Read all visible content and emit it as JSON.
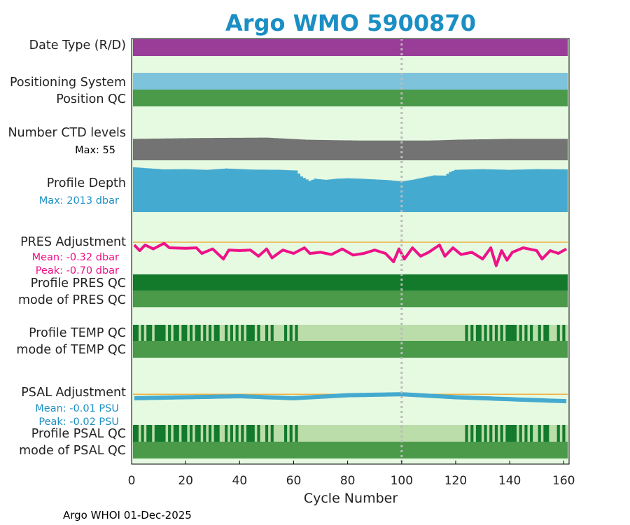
{
  "title": "Argo WMO 5900870",
  "footer": "Argo WHOI 01-Dec-2025",
  "colors": {
    "title": "#1B8FC4",
    "panel_bg": "#E6F9E1",
    "date_type": "#993D99",
    "positioning": "#7EC3DC",
    "qc_good": "#4A9A4A",
    "qc_dark": "#137A2C",
    "qc_light": "#BBDDAA",
    "ctd": "#737373",
    "depth": "#45AACF",
    "pres_line": "#EE1188",
    "psal_line": "#45AACF",
    "ref_line": "#F0B040",
    "marker": "#BBBBBB",
    "pres_stats": "#EE1188",
    "psal_stats": "#1B8FC4",
    "depth_stats": "#1B8FC4"
  },
  "rows": {
    "date_type": "Date Type (R/D)",
    "positioning_system": "Positioning System",
    "position_qc": "Position QC",
    "ctd_levels": "Number CTD levels",
    "ctd_max": "Max: 55",
    "profile_depth": "Profile Depth",
    "depth_max": "Max: 2013 dbar",
    "pres_adjustment": "PRES Adjustment",
    "pres_mean": "Mean: -0.32 dbar",
    "pres_peak": "Peak: -0.70 dbar",
    "profile_pres_qc": "Profile PRES QC",
    "mode_pres_qc": "mode of PRES QC",
    "profile_temp_qc": "Profile TEMP QC",
    "mode_temp_qc": "mode of TEMP QC",
    "psal_adjustment": "PSAL Adjustment",
    "psal_mean": "Mean: -0.01 PSU",
    "psal_peak": "Peak: -0.02 PSU",
    "profile_psal_qc": "Profile PSAL QC",
    "mode_psal_qc": "mode of PSAL QC"
  },
  "chart_data": {
    "type": "timeline",
    "title": "Argo WMO 5900870",
    "xlabel": "Cycle Number",
    "xlim": [
      0,
      162
    ],
    "xticks": [
      0,
      20,
      40,
      60,
      80,
      100,
      120,
      140,
      160
    ],
    "marker_cycle": 100,
    "cycles_start": 1,
    "cycles_end": 161,
    "ctd_levels": {
      "max": 55,
      "ylim": [
        0,
        55
      ],
      "breakpoints": [
        [
          1,
          51
        ],
        [
          25,
          53
        ],
        [
          50,
          54
        ],
        [
          62,
          50
        ],
        [
          65,
          49
        ],
        [
          75,
          48
        ],
        [
          85,
          47
        ],
        [
          110,
          47
        ],
        [
          120,
          49
        ],
        [
          140,
          51
        ],
        [
          161,
          51
        ]
      ]
    },
    "profile_depth": {
      "max": 2013,
      "ylim": [
        0,
        2013
      ],
      "breakpoints": [
        [
          1,
          2013
        ],
        [
          12,
          1920
        ],
        [
          20,
          1930
        ],
        [
          28,
          1900
        ],
        [
          35,
          1960
        ],
        [
          45,
          1910
        ],
        [
          55,
          1900
        ],
        [
          61,
          1870
        ],
        [
          63,
          1600
        ],
        [
          66,
          1400
        ],
        [
          68,
          1500
        ],
        [
          72,
          1450
        ],
        [
          76,
          1500
        ],
        [
          80,
          1520
        ],
        [
          85,
          1500
        ],
        [
          90,
          1470
        ],
        [
          95,
          1440
        ],
        [
          100,
          1380
        ],
        [
          104,
          1450
        ],
        [
          108,
          1550
        ],
        [
          112,
          1650
        ],
        [
          116,
          1640
        ],
        [
          118,
          1800
        ],
        [
          120,
          1900
        ],
        [
          130,
          1930
        ],
        [
          140,
          1900
        ],
        [
          150,
          1930
        ],
        [
          161,
          1920
        ]
      ]
    },
    "pres_adjustment": {
      "mean": -0.32,
      "peak": -0.7,
      "ylim": [
        -0.8,
        0.2
      ],
      "breakpoints": [
        [
          1,
          -0.05
        ],
        [
          3,
          -0.15
        ],
        [
          5,
          -0.05
        ],
        [
          8,
          -0.12
        ],
        [
          12,
          -0.02
        ],
        [
          14,
          -0.1
        ],
        [
          20,
          -0.11
        ],
        [
          24,
          -0.1
        ],
        [
          26,
          -0.2
        ],
        [
          30,
          -0.12
        ],
        [
          34,
          -0.3
        ],
        [
          36,
          -0.14
        ],
        [
          40,
          -0.15
        ],
        [
          44,
          -0.14
        ],
        [
          47,
          -0.25
        ],
        [
          50,
          -0.12
        ],
        [
          52,
          -0.28
        ],
        [
          56,
          -0.14
        ],
        [
          60,
          -0.2
        ],
        [
          64,
          -0.1
        ],
        [
          66,
          -0.2
        ],
        [
          70,
          -0.18
        ],
        [
          74,
          -0.22
        ],
        [
          78,
          -0.12
        ],
        [
          82,
          -0.23
        ],
        [
          86,
          -0.2
        ],
        [
          90,
          -0.14
        ],
        [
          94,
          -0.2
        ],
        [
          97,
          -0.35
        ],
        [
          99,
          -0.12
        ],
        [
          101,
          -0.3
        ],
        [
          104,
          -0.1
        ],
        [
          107,
          -0.25
        ],
        [
          110,
          -0.18
        ],
        [
          114,
          -0.05
        ],
        [
          116,
          -0.25
        ],
        [
          119,
          -0.1
        ],
        [
          122,
          -0.22
        ],
        [
          126,
          -0.18
        ],
        [
          130,
          -0.3
        ],
        [
          133,
          -0.1
        ],
        [
          135,
          -0.42
        ],
        [
          137,
          -0.15
        ],
        [
          139,
          -0.32
        ],
        [
          141,
          -0.18
        ],
        [
          145,
          -0.1
        ],
        [
          150,
          -0.15
        ],
        [
          152,
          -0.3
        ],
        [
          155,
          -0.15
        ],
        [
          158,
          -0.2
        ],
        [
          161,
          -0.12
        ]
      ]
    },
    "psal_adjustment": {
      "mean": -0.01,
      "peak": -0.02,
      "ylim": [
        -0.04,
        0.01
      ],
      "breakpoints": [
        [
          1,
          -0.004
        ],
        [
          20,
          -0.003
        ],
        [
          40,
          -0.002
        ],
        [
          60,
          -0.004
        ],
        [
          80,
          -0.001
        ],
        [
          100,
          0.0
        ],
        [
          120,
          -0.003
        ],
        [
          140,
          -0.005
        ],
        [
          161,
          -0.007
        ]
      ]
    },
    "temp_qc_dark_cycles": [
      1,
      2,
      4,
      6,
      7,
      9,
      10,
      11,
      12,
      14,
      16,
      17,
      19,
      20,
      22,
      24,
      25,
      27,
      29,
      31,
      32,
      35,
      37,
      39,
      41,
      43,
      44,
      45,
      47,
      50,
      52,
      57,
      59,
      61,
      124,
      126,
      128,
      129,
      131,
      133,
      135,
      137,
      139,
      140,
      141,
      142,
      144,
      146,
      148,
      151,
      153,
      154,
      158,
      160
    ],
    "psal_qc_dark_cycles": [
      1,
      2,
      4,
      6,
      7,
      9,
      10,
      11,
      12,
      14,
      16,
      17,
      19,
      20,
      22,
      24,
      25,
      27,
      29,
      31,
      32,
      35,
      37,
      39,
      41,
      43,
      44,
      45,
      47,
      50,
      52,
      57,
      59,
      61,
      124,
      126,
      128,
      129,
      131,
      133,
      135,
      137,
      139,
      140,
      141,
      142,
      144,
      146,
      148,
      151,
      153,
      154,
      158,
      160
    ]
  }
}
